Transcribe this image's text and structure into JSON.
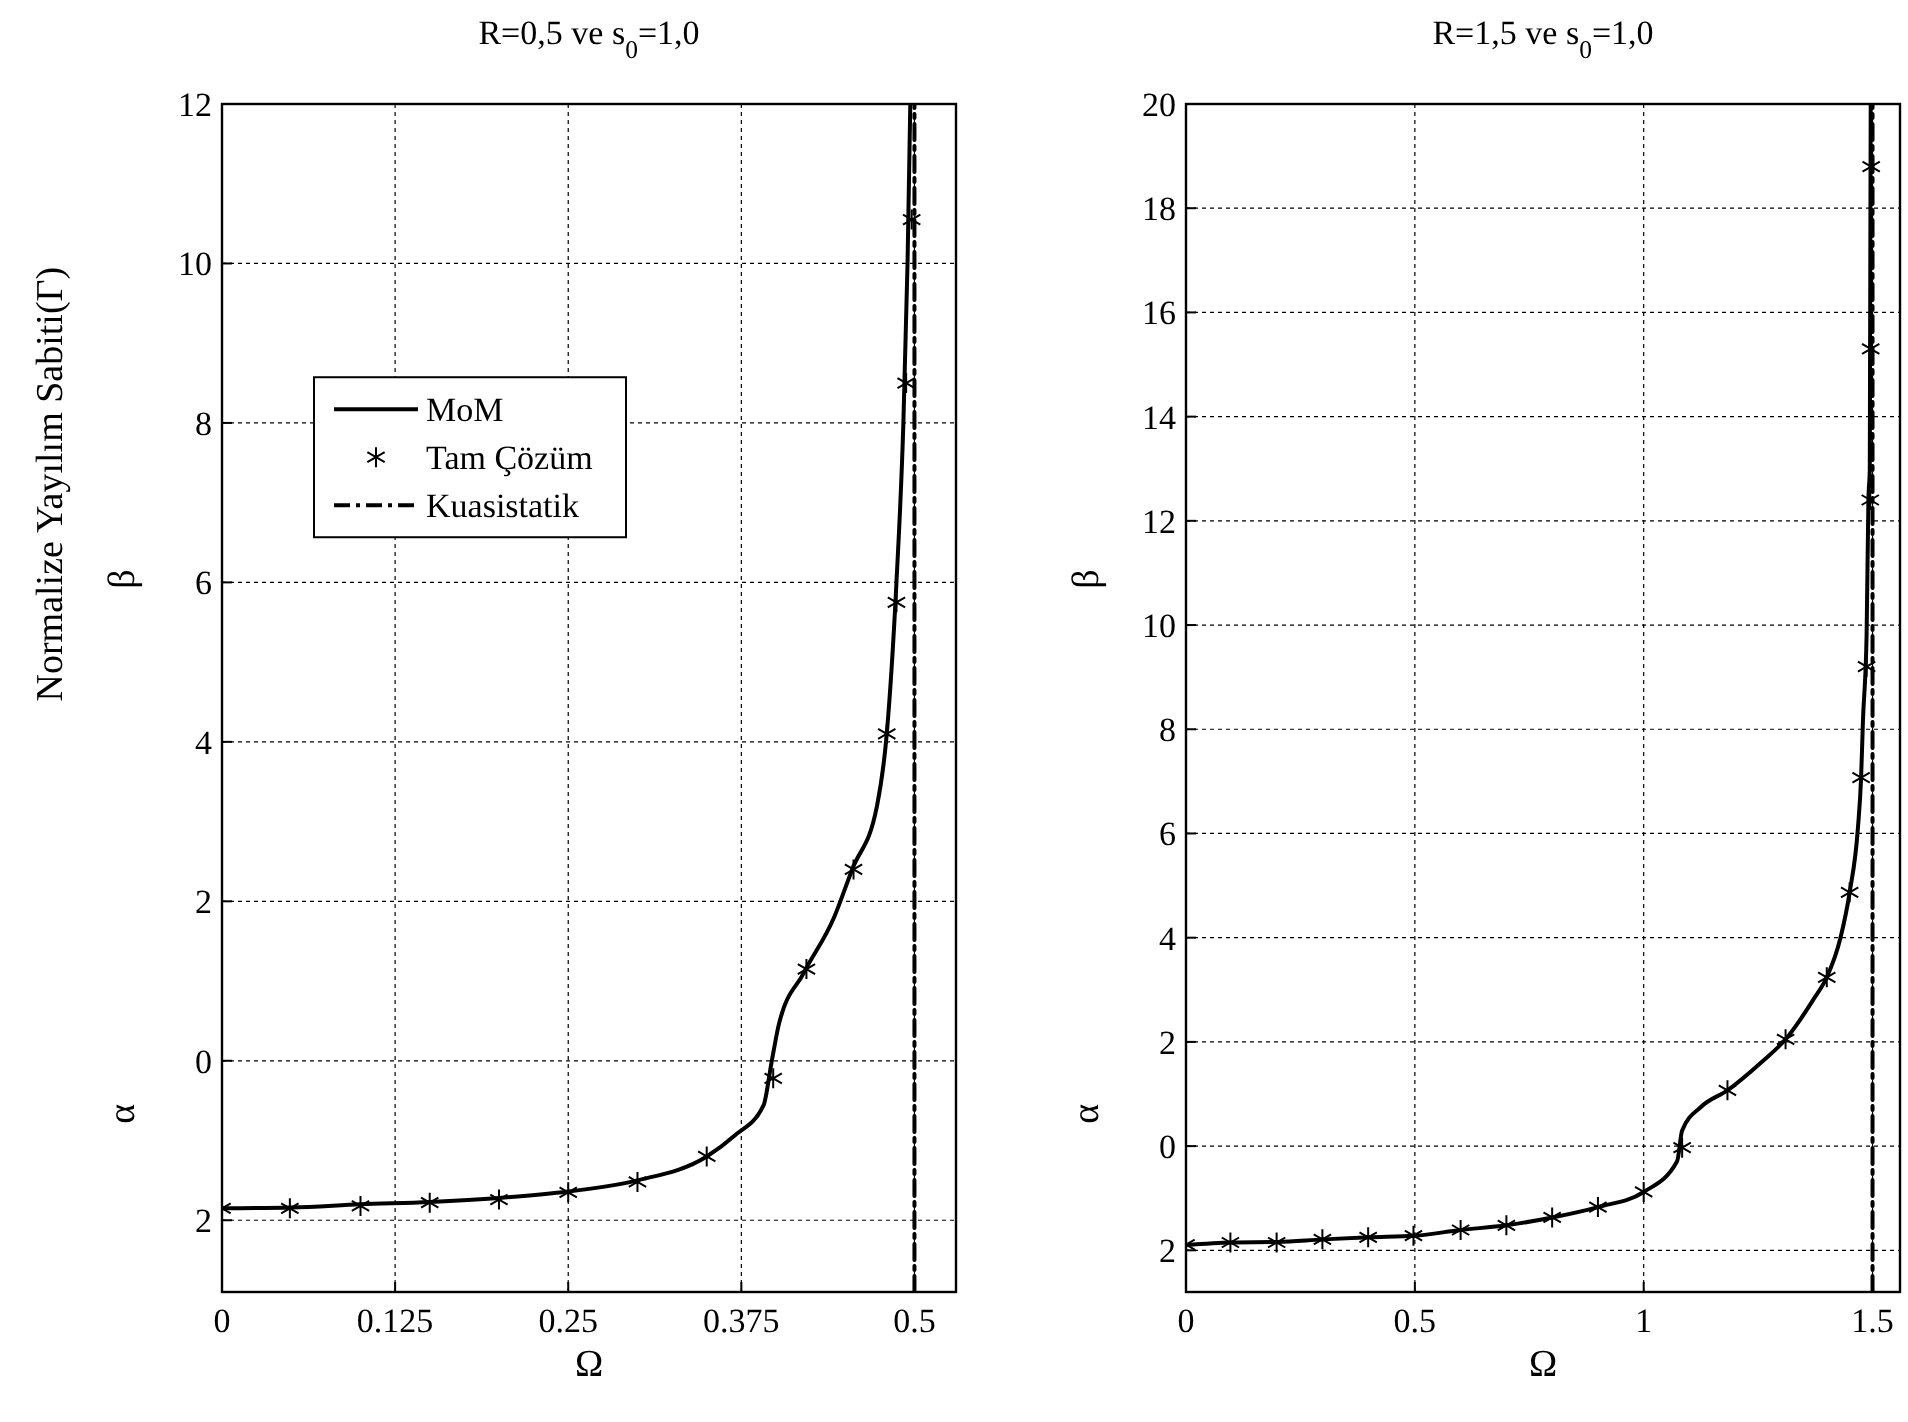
{
  "chart_data": [
    {
      "type": "line",
      "title": "R=0,5 ve s$_{0}$=1,0",
      "xlabel": "Ω",
      "ylabel": "Normalize Yayılım Sabiti(Γ)",
      "annotations": [
        "β",
        "α"
      ],
      "xlim": [
        0,
        0.53
      ],
      "xticks": [
        0,
        0.125,
        0.25,
        0.375,
        0.5
      ],
      "ylim": [
        -2.9,
        12
      ],
      "yticks": [
        {
          "value": -2,
          "label": "2"
        },
        0,
        2,
        4,
        6,
        8,
        10,
        12
      ],
      "grid": true,
      "legend": "top left",
      "series": [
        {
          "name": "MoM",
          "color": "#000000",
          "line_style": "solid",
          "marker": "none",
          "x": [
            0,
            0.05,
            0.1,
            0.15,
            0.2,
            0.25,
            0.3,
            0.35,
            0.37,
            0.391,
            0.397,
            0.402,
            0.42,
            0.442,
            0.455,
            0.473,
            0.48,
            0.487,
            0.492,
            0.495,
            0.497
          ],
          "values": [
            -1.85,
            -1.84,
            -1.8,
            -1.77,
            -1.72,
            -1.64,
            -1.5,
            -1.2,
            -0.94,
            -0.56,
            0,
            0.45,
            1.1,
            1.8,
            2.4,
            3.2,
            4.1,
            6,
            8,
            10,
            12
          ]
        },
        {
          "name": "Tam Çözüm",
          "color": "#000000",
          "type": "scatter",
          "marker": "cross",
          "x": [
            0,
            0.049,
            0.1,
            0.15,
            0.2,
            0.25,
            0.3,
            0.35,
            0.398,
            0.422,
            0.456,
            0.48,
            0.487,
            0.494,
            0.498
          ],
          "values": [
            -1.85,
            -1.85,
            -1.82,
            -1.78,
            -1.74,
            -1.65,
            -1.52,
            -1.2,
            -0.22,
            1.15,
            2.4,
            4.1,
            5.75,
            8.5,
            10.55
          ]
        },
        {
          "name": "Kuasistatik",
          "color": "#000000",
          "line_style": "dashdot",
          "marker": "none",
          "x": [
            0.5,
            0.5
          ],
          "values": [
            -2.9,
            12
          ]
        }
      ]
    },
    {
      "type": "line",
      "title": "R=1,5 ve s$_{0}$=1,0",
      "xlabel": "Ω",
      "annotations": [
        "β",
        "α"
      ],
      "xlim": [
        0,
        1.56
      ],
      "xticks": [
        0,
        0.5,
        1,
        1.5
      ],
      "ylim": [
        -2.8,
        20
      ],
      "yticks": [
        {
          "value": -2,
          "label": "2"
        },
        0,
        2,
        4,
        6,
        8,
        10,
        12,
        14,
        16,
        18,
        20
      ],
      "grid": true,
      "legend": false,
      "series": [
        {
          "color": "#000000",
          "line_style": "solid",
          "marker": "none",
          "x": [
            0,
            0.1,
            0.2,
            0.3,
            0.4,
            0.5,
            0.6,
            0.7,
            0.8,
            0.9,
            1.0,
            1.073,
            1.084,
            1.125,
            1.183,
            1.256,
            1.31,
            1.372,
            1.4,
            1.43,
            1.45,
            1.468,
            1.475,
            1.479,
            1.487,
            1.491,
            1.494,
            1.496
          ],
          "values": [
            -1.9,
            -1.85,
            -1.84,
            -1.79,
            -1.75,
            -1.72,
            -1.61,
            -1.52,
            -1.37,
            -1.17,
            -0.88,
            -0.29,
            0.3,
            0.75,
            1.07,
            1.6,
            2.05,
            2.83,
            3.24,
            4.0,
            4.87,
            6.1,
            7.07,
            8.15,
            9.8,
            12.4,
            13,
            20
          ]
        },
        {
          "color": "#000000",
          "type": "scatter",
          "marker": "cross",
          "x": [
            0,
            0.097,
            0.198,
            0.298,
            0.398,
            0.497,
            0.6,
            0.7,
            0.8,
            0.9,
            1.0,
            1.084,
            1.183,
            1.31,
            1.4,
            1.45,
            1.475,
            1.487,
            1.495,
            1.496,
            1.497
          ],
          "values": [
            -1.89,
            -1.85,
            -1.85,
            -1.79,
            -1.75,
            -1.72,
            -1.61,
            -1.52,
            -1.37,
            -1.17,
            -0.88,
            -0.03,
            1.07,
            2.05,
            3.24,
            4.87,
            7.07,
            9.2,
            12.4,
            15.3,
            18.8
          ]
        },
        {
          "color": "#000000",
          "line_style": "dashdot",
          "marker": "none",
          "x": [
            1.5,
            1.5
          ],
          "values": [
            -2.8,
            20
          ]
        }
      ]
    }
  ]
}
